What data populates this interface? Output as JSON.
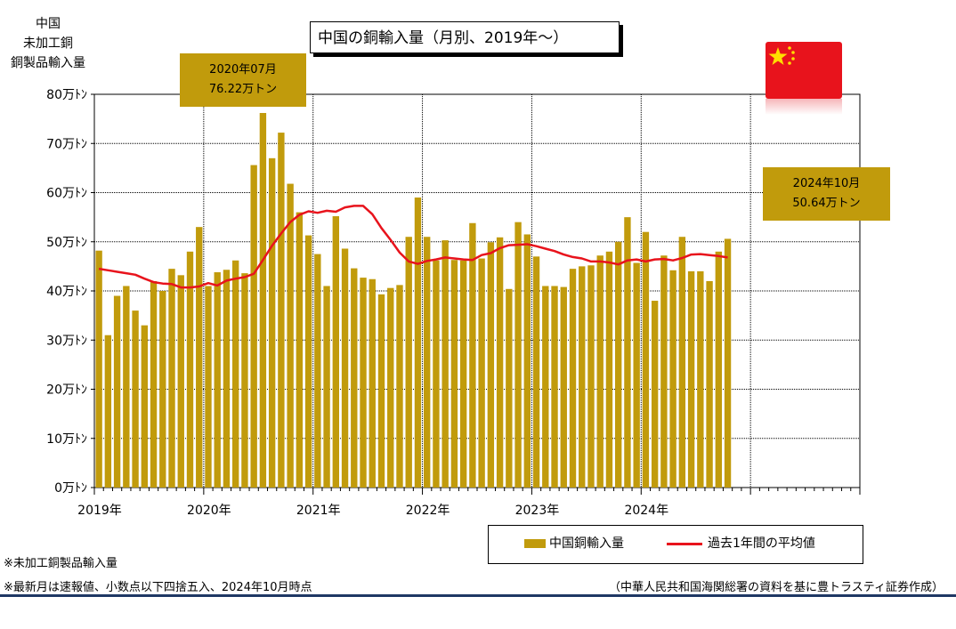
{
  "chart_data": {
    "type": "bar",
    "title": "中国の銅輸入量（月別、2019年～）",
    "ylabel": [
      "中国",
      "未加工銅",
      "銅製品輸入量"
    ],
    "ylim": [
      0,
      80
    ],
    "y_ticks": [
      "0万ﾄﾝ",
      "10万ﾄﾝ",
      "20万ﾄﾝ",
      "30万ﾄﾝ",
      "40万ﾄﾝ",
      "50万ﾄﾝ",
      "60万ﾄﾝ",
      "70万ﾄﾝ",
      "80万ﾄﾝ"
    ],
    "x_ticks": [
      "2019年",
      "2020年",
      "2021年",
      "2022年",
      "2023年",
      "2024年"
    ],
    "series": [
      {
        "name": "中国銅輸入量",
        "type": "bar",
        "color": "#C19B0C",
        "values": [
          48.2,
          31.0,
          39.0,
          41.0,
          36.0,
          33.0,
          42.0,
          40.0,
          44.5,
          43.2,
          48.0,
          53.0,
          41.0,
          43.8,
          44.3,
          46.2,
          43.6,
          65.6,
          76.2,
          67.0,
          72.2,
          61.8,
          56.0,
          51.3,
          47.5,
          41.0,
          55.2,
          48.6,
          44.6,
          42.7,
          42.4,
          39.3,
          40.6,
          41.2,
          51.0,
          59.0,
          51.0,
          46.2,
          50.3,
          46.3,
          46.2,
          53.8,
          46.6,
          49.9,
          50.9,
          40.4,
          54.0,
          51.5,
          47.0,
          41.0,
          41.0,
          40.8,
          44.5,
          45.0,
          45.2,
          47.2,
          48.0,
          50.0,
          55.0,
          45.7,
          52.0,
          38.0,
          47.2,
          44.2,
          51.0,
          44.0,
          44.0,
          42.0,
          48.0,
          50.6
        ]
      },
      {
        "name": "過去1年間の平均値",
        "type": "line",
        "color": "#E8131C",
        "values": [
          44.5,
          44.2,
          43.9,
          43.6,
          43.3,
          42.5,
          41.8,
          41.5,
          41.4,
          40.7,
          40.7,
          40.9,
          41.6,
          41.1,
          42.1,
          42.5,
          42.8,
          43.5,
          46.3,
          49.2,
          51.7,
          54.0,
          55.5,
          56.2,
          55.9,
          56.3,
          56.1,
          57.0,
          57.3,
          57.3,
          55.6,
          52.8,
          50.4,
          47.8,
          46.0,
          45.5,
          46.1,
          46.4,
          46.8,
          46.6,
          46.4,
          46.3,
          47.3,
          47.7,
          48.7,
          49.3,
          49.4,
          49.5,
          49.1,
          48.6,
          48.1,
          47.4,
          46.9,
          46.6,
          46.0,
          46.0,
          45.8,
          45.4,
          46.2,
          46.4,
          46.0,
          46.4,
          46.5,
          46.2,
          46.7,
          47.4,
          47.5,
          47.3,
          47.1,
          46.8
        ]
      }
    ],
    "annotations": [
      {
        "lines": [
          "2020年07月",
          "76.22万トン"
        ]
      },
      {
        "lines": [
          "2024年10月",
          "50.64万トン"
        ]
      }
    ],
    "grid": true,
    "legend_position": "bottom-right"
  },
  "notes": {
    "note1": "※未加工銅製品輸入量",
    "note2": "※最新月は速報値、小数点以下四捨五入、2024年10月時点",
    "source": "（中華人民共和国海関総署の資料を基に豊トラスティ証券作成）"
  },
  "flag_icon": "china-flag-icon"
}
